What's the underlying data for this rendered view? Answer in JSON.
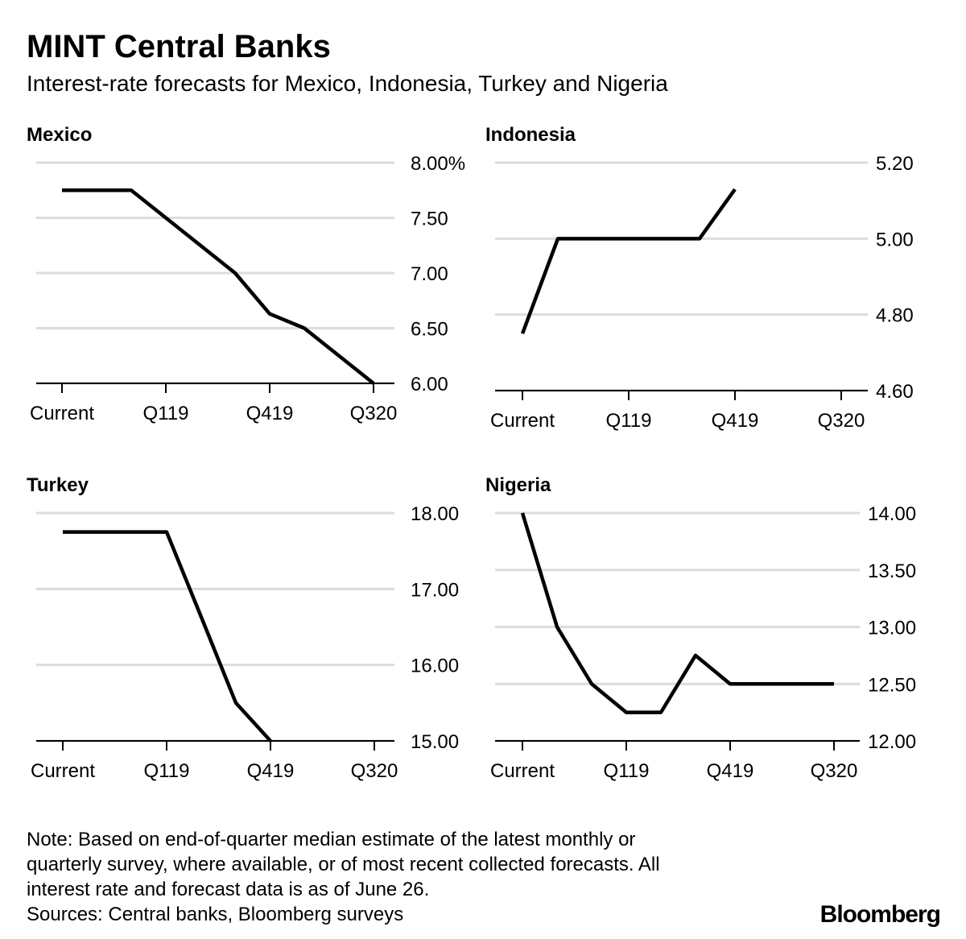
{
  "title": "MINT Central Banks",
  "subtitle": "Interest-rate forecasts for Mexico, Indonesia, Turkey and Nigeria",
  "note": [
    "Note: Based on end-of-quarter median estimate of the latest monthly or",
    "quarterly survey, where available, or of most recent collected forecasts. All",
    "interest rate and forecast data is as of June 26."
  ],
  "source": "Sources: Central banks, Bloomberg surveys",
  "brand": "Bloomberg",
  "chart_data": [
    {
      "type": "line",
      "title": "Mexico",
      "color": "#000000",
      "grid": true,
      "categories": [
        "Current",
        null,
        null,
        "Q119",
        null,
        null,
        "Q419",
        null,
        null,
        "Q320"
      ],
      "values": [
        7.75,
        7.75,
        7.75,
        7.5,
        7.25,
        7.0,
        6.63,
        6.5,
        6.25,
        6.0
      ],
      "ylim": [
        6,
        8
      ],
      "yticks": [
        {
          "value": 6,
          "label": "6.00"
        },
        {
          "value": 6.5,
          "label": "6.50"
        },
        {
          "value": 7,
          "label": "7.00"
        },
        {
          "value": 7.5,
          "label": "7.50"
        },
        {
          "value": 8,
          "label": "8.00%"
        }
      ]
    },
    {
      "type": "line",
      "title": "Indonesia",
      "color": "#000000",
      "grid": true,
      "categories": [
        "Current",
        null,
        null,
        "Q119",
        null,
        null,
        "Q419",
        null,
        null,
        "Q320"
      ],
      "values": [
        4.75,
        5.0,
        5.0,
        5.0,
        5.0,
        5.0,
        5.13,
        null,
        null,
        null
      ],
      "ylim": [
        4.6,
        5.2
      ],
      "yticks": [
        {
          "value": 4.6,
          "label": "4.60"
        },
        {
          "value": 4.8,
          "label": "4.80"
        },
        {
          "value": 5.0,
          "label": "5.00"
        },
        {
          "value": 5.2,
          "label": "5.20"
        }
      ]
    },
    {
      "type": "line",
      "title": "Turkey",
      "color": "#000000",
      "grid": true,
      "categories": [
        "Current",
        null,
        null,
        "Q119",
        null,
        null,
        "Q419",
        null,
        null,
        "Q320"
      ],
      "values": [
        17.75,
        17.75,
        17.75,
        17.75,
        16.63,
        15.5,
        15.0,
        null,
        null,
        null
      ],
      "ylim": [
        15,
        18
      ],
      "yticks": [
        {
          "value": 15,
          "label": "15.00"
        },
        {
          "value": 16,
          "label": "16.00"
        },
        {
          "value": 17,
          "label": "17.00"
        },
        {
          "value": 18,
          "label": "18.00"
        }
      ]
    },
    {
      "type": "line",
      "title": "Nigeria",
      "color": "#000000",
      "grid": true,
      "categories": [
        "Current",
        null,
        null,
        "Q119",
        null,
        null,
        "Q419",
        null,
        null,
        "Q320"
      ],
      "values": [
        14.0,
        13.0,
        12.5,
        12.25,
        12.25,
        12.75,
        12.5,
        12.5,
        12.5,
        12.5
      ],
      "ylim": [
        12,
        14
      ],
      "yticks": [
        {
          "value": 12,
          "label": "12.00"
        },
        {
          "value": 12.5,
          "label": "12.50"
        },
        {
          "value": 13,
          "label": "13.00"
        },
        {
          "value": 13.5,
          "label": "13.50"
        },
        {
          "value": 14,
          "label": "14.00"
        }
      ]
    }
  ]
}
